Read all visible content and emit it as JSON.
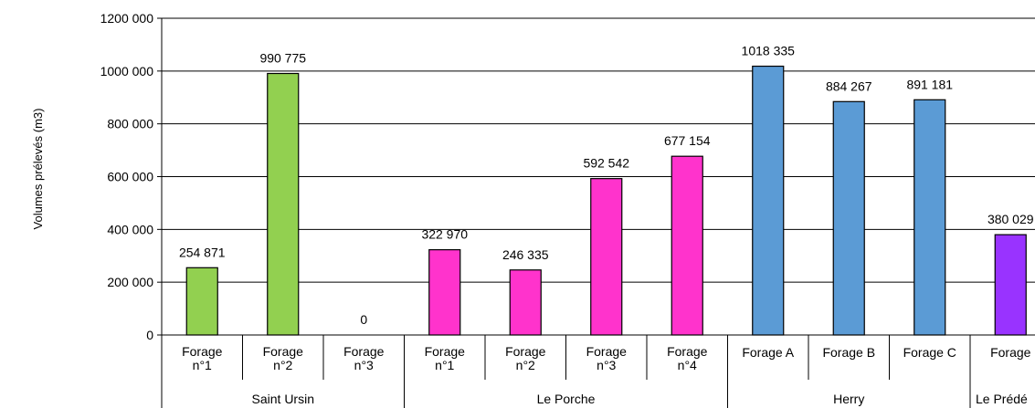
{
  "chart_data": {
    "type": "bar",
    "ylabel": "Volumes prélevés (m3)",
    "ylim": [
      0,
      1200000
    ],
    "y_ticks": [
      0,
      200000,
      400000,
      600000,
      800000,
      1000000,
      1200000
    ],
    "y_tick_labels": [
      "0",
      "200 000",
      "400 000",
      "600 000",
      "800 000",
      "1000 000",
      "1200 000"
    ],
    "grid": true,
    "categories": [
      [
        "Forage",
        "n°1"
      ],
      [
        "Forage",
        "n°2"
      ],
      [
        "Forage",
        "n°3"
      ],
      [
        "Forage",
        "n°1"
      ],
      [
        "Forage",
        "n°2"
      ],
      [
        "Forage",
        "n°3"
      ],
      [
        "Forage",
        "n°4"
      ],
      [
        "Forage A"
      ],
      [
        "Forage B"
      ],
      [
        "Forage C"
      ],
      [
        "Forage"
      ]
    ],
    "values": [
      254871,
      990775,
      0,
      322970,
      246335,
      592542,
      677154,
      1018335,
      884267,
      891181,
      380029
    ],
    "data_labels": [
      "254 871",
      "990 775",
      "0",
      "322 970",
      "246 335",
      "592 542",
      "677 154",
      "1018 335",
      "884 267",
      "891 181",
      "380 029"
    ],
    "groups": [
      {
        "name": "Saint Ursin",
        "count": 3,
        "color": "#92D050"
      },
      {
        "name": "Le Porche",
        "count": 4,
        "color": "#FF33CC"
      },
      {
        "name": "Herry",
        "count": 3,
        "color": "#5B9BD5"
      },
      {
        "name": "Le Prédé",
        "count": 1,
        "color": "#9933FF"
      }
    ]
  }
}
